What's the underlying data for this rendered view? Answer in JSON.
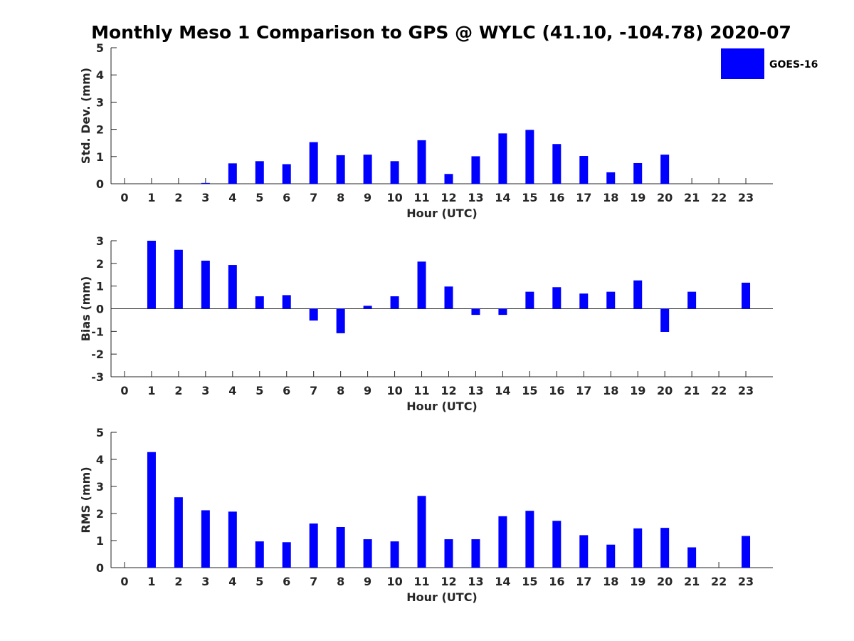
{
  "chart_title": "Monthly Meso 1 Comparison to GPS @ WYLC (41.10, -104.78) 2020-07",
  "legend": {
    "label": "GOES-16",
    "color": "#0000ff"
  },
  "chart_data": [
    {
      "type": "bar",
      "title": "Monthly Meso 1 Comparison to GPS @ WYLC (41.10, -104.78) 2020-07",
      "xlabel": "Hour (UTC)",
      "ylabel": "Std. Dev. (mm)",
      "ylim": [
        0,
        5
      ],
      "yticks": [
        "0",
        "1",
        "2",
        "3",
        "4",
        "5"
      ],
      "categories": [
        "0",
        "1",
        "2",
        "3",
        "4",
        "5",
        "6",
        "7",
        "8",
        "9",
        "10",
        "11",
        "12",
        "13",
        "14",
        "15",
        "16",
        "17",
        "18",
        "19",
        "20",
        "21",
        "22",
        "23"
      ],
      "series": [
        {
          "name": "GOES-16",
          "color": "#0000ff",
          "values": [
            0,
            0,
            0,
            0.03,
            0.75,
            0.83,
            0.72,
            1.53,
            1.05,
            1.07,
            0.83,
            1.6,
            0.36,
            1.01,
            1.85,
            1.98,
            1.46,
            1.02,
            0.42,
            0.76,
            1.07,
            0,
            0,
            0
          ]
        }
      ]
    },
    {
      "type": "bar",
      "xlabel": "Hour (UTC)",
      "ylabel": "Bias (mm)",
      "ylim": [
        -3,
        3
      ],
      "yticks": [
        "-3",
        "-2",
        "-1",
        "0",
        "1",
        "2",
        "3"
      ],
      "categories": [
        "0",
        "1",
        "2",
        "3",
        "4",
        "5",
        "6",
        "7",
        "8",
        "9",
        "10",
        "11",
        "12",
        "13",
        "14",
        "15",
        "16",
        "17",
        "18",
        "19",
        "20",
        "21",
        "22",
        "23"
      ],
      "series": [
        {
          "name": "GOES-16",
          "color": "#0000ff",
          "values": [
            0,
            3.0,
            2.6,
            2.12,
            1.93,
            0.55,
            0.6,
            -0.52,
            -1.08,
            0.13,
            0.55,
            2.08,
            0.98,
            -0.27,
            -0.27,
            0.75,
            0.95,
            0.67,
            0.75,
            1.25,
            -1.02,
            0.75,
            0,
            1.15
          ]
        }
      ]
    },
    {
      "type": "bar",
      "xlabel": "Hour (UTC)",
      "ylabel": "RMS (mm)",
      "ylim": [
        0,
        5
      ],
      "yticks": [
        "0",
        "1",
        "2",
        "3",
        "4",
        "5"
      ],
      "categories": [
        "0",
        "1",
        "2",
        "3",
        "4",
        "5",
        "6",
        "7",
        "8",
        "9",
        "10",
        "11",
        "12",
        "13",
        "14",
        "15",
        "16",
        "17",
        "18",
        "19",
        "20",
        "21",
        "22",
        "23"
      ],
      "series": [
        {
          "name": "GOES-16",
          "color": "#0000ff",
          "values": [
            0,
            4.27,
            2.6,
            2.12,
            2.07,
            0.97,
            0.94,
            1.63,
            1.5,
            1.05,
            0.97,
            2.65,
            1.05,
            1.05,
            1.9,
            2.1,
            1.73,
            1.2,
            0.85,
            1.45,
            1.47,
            0.75,
            0,
            1.17
          ]
        }
      ]
    }
  ]
}
